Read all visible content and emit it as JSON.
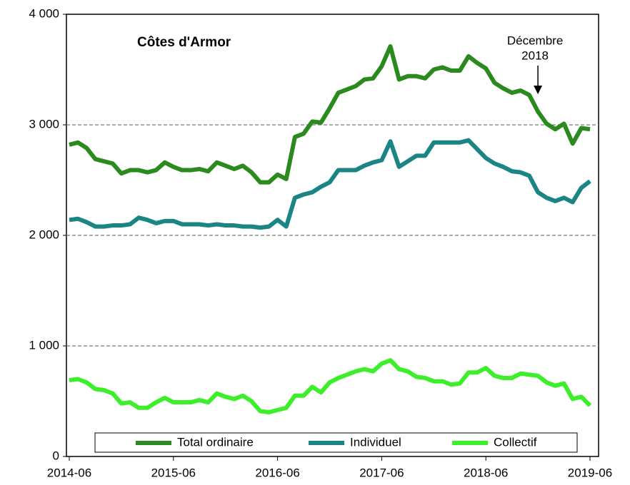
{
  "chart_data": {
    "type": "line",
    "title": "Côtes d'Armor",
    "annotation": [
      "Décembre",
      "2018"
    ],
    "annotation_x": "2018-12",
    "x": [
      "2014-06",
      "2014-07",
      "2014-08",
      "2014-09",
      "2014-10",
      "2014-11",
      "2014-12",
      "2015-01",
      "2015-02",
      "2015-03",
      "2015-04",
      "2015-05",
      "2015-06",
      "2015-07",
      "2015-08",
      "2015-09",
      "2015-10",
      "2015-11",
      "2015-12",
      "2016-01",
      "2016-02",
      "2016-03",
      "2016-04",
      "2016-05",
      "2016-06",
      "2016-07",
      "2016-08",
      "2016-09",
      "2016-10",
      "2016-11",
      "2016-12",
      "2017-01",
      "2017-02",
      "2017-03",
      "2017-04",
      "2017-05",
      "2017-06",
      "2017-07",
      "2017-08",
      "2017-09",
      "2017-10",
      "2017-11",
      "2017-12",
      "2018-01",
      "2018-02",
      "2018-03",
      "2018-04",
      "2018-05",
      "2018-06",
      "2018-07",
      "2018-08",
      "2018-09",
      "2018-10",
      "2018-11",
      "2018-12",
      "2019-01",
      "2019-02",
      "2019-03",
      "2019-04",
      "2019-05",
      "2019-06"
    ],
    "xticks": [
      "2014-06",
      "2015-06",
      "2016-06",
      "2017-06",
      "2018-06",
      "2019-06"
    ],
    "ylim": [
      0,
      4000
    ],
    "yticks": [
      0,
      {
        "value": 1000,
        "label": "1 000"
      },
      {
        "value": 2000,
        "label": "2 000"
      },
      {
        "value": 3000,
        "label": "3 000"
      },
      {
        "value": 4000,
        "label": "4 000"
      }
    ],
    "grid": true,
    "legend": "bottom",
    "series": [
      {
        "name": "Total ordinaire",
        "color": "#2a8a1e",
        "values": [
          2820,
          2840,
          2790,
          2690,
          2670,
          2650,
          2560,
          2590,
          2590,
          2570,
          2590,
          2660,
          2620,
          2590,
          2590,
          2600,
          2580,
          2660,
          2630,
          2600,
          2630,
          2570,
          2480,
          2480,
          2550,
          2510,
          2890,
          2920,
          3030,
          3020,
          3150,
          3290,
          3320,
          3350,
          3410,
          3420,
          3530,
          3710,
          3410,
          3440,
          3440,
          3420,
          3500,
          3520,
          3490,
          3490,
          3620,
          3560,
          3510,
          3380,
          3330,
          3290,
          3310,
          3270,
          3120,
          3010,
          2960,
          3010,
          2830,
          2970,
          2960
        ]
      },
      {
        "name": "Individuel",
        "color": "#1b8585",
        "values": [
          2140,
          2150,
          2120,
          2080,
          2080,
          2090,
          2090,
          2100,
          2160,
          2140,
          2110,
          2130,
          2130,
          2100,
          2100,
          2100,
          2090,
          2100,
          2090,
          2090,
          2080,
          2080,
          2070,
          2080,
          2140,
          2080,
          2340,
          2370,
          2390,
          2440,
          2480,
          2590,
          2590,
          2590,
          2630,
          2660,
          2680,
          2850,
          2620,
          2670,
          2720,
          2720,
          2840,
          2840,
          2840,
          2840,
          2860,
          2780,
          2700,
          2650,
          2620,
          2580,
          2570,
          2540,
          2390,
          2340,
          2310,
          2340,
          2300,
          2430,
          2490
        ]
      },
      {
        "name": "Collectif",
        "color": "#3def2a",
        "values": [
          690,
          700,
          670,
          610,
          600,
          570,
          480,
          490,
          440,
          440,
          490,
          530,
          490,
          490,
          490,
          510,
          490,
          570,
          540,
          520,
          550,
          500,
          410,
          400,
          420,
          440,
          550,
          550,
          630,
          580,
          670,
          710,
          740,
          770,
          790,
          770,
          840,
          870,
          790,
          770,
          720,
          710,
          680,
          680,
          650,
          660,
          760,
          760,
          800,
          730,
          710,
          710,
          750,
          740,
          730,
          670,
          640,
          660,
          520,
          540,
          460
        ]
      }
    ]
  }
}
